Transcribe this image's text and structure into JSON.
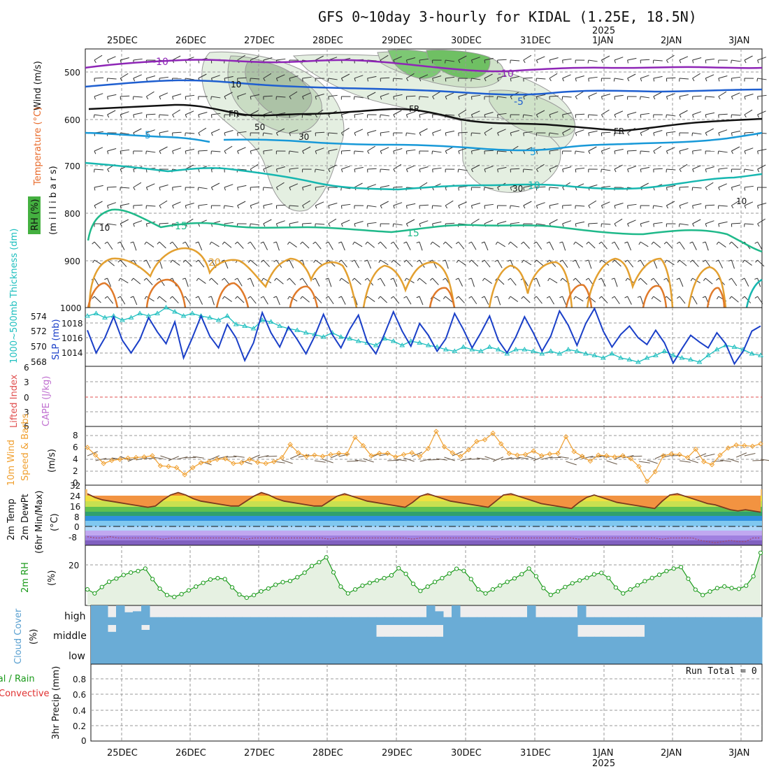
{
  "title": "GFS 0~10day 3-hourly for KIDAL (1.25E, 18.5N)",
  "dates": [
    "25DEC",
    "26DEC",
    "27DEC",
    "28DEC",
    "29DEC",
    "30DEC",
    "31DEC",
    "1JAN",
    "2JAN",
    "3JAN"
  ],
  "year_label": "2025",
  "colors": {
    "temp_m10": "#8e26b6",
    "temp_m5": "#1f5fd0",
    "temp_5": "#1899d8",
    "temp_10": "#17b7b0",
    "temp_15": "#1fb98a",
    "temp_20": "#e3a030",
    "temp_25": "#e07a2a",
    "freezing": "#111111",
    "slp": "#1a3fc8",
    "thickness": "#1ebfbf",
    "wind_speed": "#f0a030",
    "temp_fill_warm": "#f08020",
    "dewpoint": "#a04a70",
    "rh": "#1a9a1a",
    "cloud": "#6aacd6",
    "cloud_gap": "#e8e8e8"
  },
  "panels": {
    "upper_air": {
      "y_ticks": [
        "500",
        "600",
        "700",
        "800",
        "900",
        "1000"
      ],
      "label_wind": "Wind (m/s)",
      "label_temp": "Temperature (°C)",
      "label_rh": "RH (%)",
      "label_units": "(m i l l i b a r s)",
      "contour_labels": [
        "-10",
        "-10",
        "-5",
        "FR",
        "FR",
        "FR",
        "5",
        "5",
        "10",
        "15",
        "15",
        "20",
        "10",
        "10",
        "30",
        "30",
        "50",
        "10"
      ]
    },
    "slp_thickness": {
      "label_thickness": "1000~500mb Thickness (dm)",
      "label_slp": "SLP (mb)",
      "left_ticks": [
        "574",
        "572",
        "570",
        "568"
      ],
      "right_ticks": [
        "1018",
        "1016",
        "1014"
      ]
    },
    "stability": {
      "label_li": "Lifted Index",
      "label_cape": "CAPE (J/kg)",
      "ticks": [
        "6",
        "3",
        "0",
        "3",
        "6"
      ]
    },
    "wind10m": {
      "label_1": "10m Wind",
      "label_2": "Speed & Barbs",
      "units": "(m/s)",
      "ticks": [
        "8",
        "6",
        "4",
        "2",
        "0"
      ]
    },
    "temp2m": {
      "label_1": "2m Temp",
      "label_2": "2m DewPt",
      "label_3": "(6hr Min/Max)",
      "units": "(°C)",
      "ticks": [
        "32",
        "24",
        "16",
        "8",
        "0",
        "-8"
      ]
    },
    "rh2m": {
      "label": "2m RH",
      "units": "(%)",
      "ticks": [
        "20"
      ]
    },
    "cloud": {
      "label": "Cloud Cover",
      "units": "(%)",
      "levels": [
        "high",
        "middle",
        "low"
      ]
    },
    "precip": {
      "label_total": "Total / Rain",
      "label_conv": "Convective",
      "label_axis": "3hr Precip (mm)",
      "ticks": [
        "0.8",
        "0.6",
        "0.4",
        "0.2",
        "0"
      ],
      "run_total": "Run Total = 0"
    }
  },
  "chart_data": [
    {
      "type": "line",
      "title": "1000~500mb Thickness (dm) / SLP (mb)",
      "series": [
        {
          "name": "SLP (mb)",
          "values": [
            1016.8,
            1014.1,
            1015.9,
            1018.4,
            1015.6,
            1014.1,
            1015.7,
            1018.3,
            1016.6,
            1015.2,
            1017.8,
            1013.5,
            1015.9,
            1018.5,
            1016.1,
            1014.7,
            1017.5,
            1015.9,
            1013.2,
            1015.3,
            1018.9,
            1016.5,
            1014.8,
            1017.2,
            1015.7,
            1014.0,
            1016.1,
            1018.7,
            1016.3,
            1014.7,
            1016.9,
            1018.6,
            1015.4,
            1014.0,
            1016.4,
            1019.0,
            1016.7,
            1014.9,
            1017.6,
            1016.2,
            1014.3,
            1015.8,
            1018.8,
            1016.9,
            1014.7,
            1016.5,
            1018.5,
            1015.6,
            1014.1,
            1016.0,
            1018.4,
            1016.5,
            1014.3,
            1016.1,
            1019.1,
            1017.4,
            1015.0,
            1017.6,
            1019.4,
            1016.7,
            1014.8,
            1016.3,
            1017.3,
            1015.9,
            1015.1,
            1016.8,
            1015.3,
            1012.9,
            1014.6,
            1016.2,
            1015.4,
            1014.7,
            1016.5,
            1015.2,
            1012.8,
            1014.3,
            1016.7,
            1017.3
          ]
        },
        {
          "name": "Thickness (dm)",
          "values": [
            573.6,
            573.9,
            573.4,
            573.6,
            573.1,
            573.4,
            573.9,
            573.6,
            573.9,
            574.6,
            574.1,
            573.6,
            573.9,
            573.6,
            573.4,
            573.1,
            573.6,
            572.6,
            572.4,
            572.1,
            573.1,
            572.9,
            572.4,
            572.1,
            571.9,
            571.6,
            571.4,
            571.1,
            571.6,
            571.1,
            570.9,
            570.6,
            570.4,
            570.1,
            570.9,
            570.6,
            570.1,
            570.6,
            570.4,
            570.1,
            569.9,
            569.6,
            569.4,
            569.9,
            569.6,
            569.4,
            569.9,
            569.6,
            569.1,
            569.6,
            569.6,
            569.4,
            569.1,
            569.4,
            569.1,
            569.6,
            569.4,
            569.1,
            568.9,
            568.6,
            569.1,
            568.6,
            568.4,
            568.1,
            568.6,
            568.9,
            569.4,
            568.9,
            568.6,
            568.4,
            568.1,
            568.9,
            569.6,
            570.1,
            569.9,
            569.6,
            569.1,
            568.9
          ]
        }
      ],
      "ylabel": "SLP (mb)",
      "ylim": [
        1012.5,
        1019.5
      ],
      "y2lim": [
        567.6,
        574.6
      ]
    },
    {
      "type": "line",
      "title": "10m Wind Speed (m/s)",
      "series": [
        {
          "name": "Speed",
          "values": [
            6.0,
            4.7,
            3.3,
            3.8,
            4.0,
            4.2,
            4.3,
            4.4,
            4.6,
            2.9,
            2.8,
            2.6,
            1.4,
            2.6,
            3.4,
            3.6,
            4.0,
            4.1,
            3.3,
            3.4,
            4.0,
            3.5,
            3.3,
            3.6,
            4.3,
            6.5,
            5.1,
            4.5,
            4.7,
            4.5,
            4.8,
            5.0,
            4.9,
            7.7,
            6.3,
            4.6,
            5.0,
            5.0,
            4.4,
            4.8,
            5.1,
            4.5,
            5.8,
            8.7,
            6.1,
            5.1,
            4.5,
            5.6,
            7.0,
            7.3,
            8.4,
            6.6,
            5.0,
            4.7,
            4.8,
            5.4,
            4.6,
            4.9,
            5.0,
            7.8,
            5.3,
            4.5,
            3.7,
            4.7,
            4.6,
            4.4,
            4.6,
            4.1,
            2.8,
            0.3,
            1.9,
            4.6,
            4.9,
            4.8,
            4.3,
            5.7,
            3.6,
            3.1,
            4.7,
            5.9,
            6.4,
            6.3,
            6.2,
            6.6
          ]
        }
      ],
      "ylabel": "(m/s)",
      "ylim": [
        0,
        10
      ]
    },
    {
      "type": "area",
      "title": "2m Temp (°C)",
      "series": [
        {
          "name": "2m Temp",
          "values": [
            26,
            23,
            21,
            20,
            19,
            18,
            17,
            16,
            15,
            16,
            21,
            25,
            27,
            25,
            22,
            20,
            19,
            18,
            17,
            16,
            16,
            20,
            24,
            27,
            25,
            22,
            20,
            19,
            18,
            17,
            16,
            16,
            20,
            24,
            26,
            24,
            22,
            20,
            19,
            18,
            17,
            16,
            15,
            19,
            24,
            26,
            24,
            22,
            20,
            19,
            18,
            17,
            16,
            15,
            20,
            25,
            26,
            24,
            22,
            20,
            18,
            17,
            16,
            15,
            14,
            19,
            23,
            25,
            23,
            21,
            19,
            18,
            17,
            16,
            15,
            14,
            20,
            25,
            26,
            24,
            22,
            20,
            18,
            17,
            15,
            13,
            12,
            13,
            12,
            11
          ]
        },
        {
          "name": "2m DewPt",
          "values": [
            -9,
            -10,
            -10,
            -9,
            -10,
            -10,
            -10,
            -10,
            -10,
            -10,
            -11,
            -10,
            -10,
            -10,
            -10,
            -10,
            -10,
            -10,
            -10,
            -10,
            -10,
            -11,
            -10,
            -10,
            -10,
            -10,
            -10,
            -10,
            -10,
            -10,
            -10,
            -10,
            -11,
            -10,
            -10,
            -10,
            -10,
            -10,
            -10,
            -10,
            -10,
            -10,
            -10,
            -11,
            -10,
            -10,
            -10,
            -10,
            -10,
            -10,
            -10,
            -10,
            -10,
            -10,
            -11,
            -10,
            -10,
            -10,
            -10,
            -10,
            -10,
            -10,
            -10,
            -10,
            -10,
            -11,
            -10,
            -10,
            -10,
            -10,
            -10,
            -10,
            -10,
            -10,
            -10,
            -10,
            -11,
            -10,
            -10,
            -10,
            -10,
            -12,
            -13,
            -14,
            -13,
            -12,
            -13,
            -13,
            -10,
            -10
          ]
        }
      ],
      "ylabel": "(°C)",
      "ylim": [
        -16,
        33
      ]
    },
    {
      "type": "line",
      "title": "2m RH (%)",
      "series": [
        {
          "name": "2m RH",
          "values": [
            8.5,
            6.4,
            9.8,
            12.6,
            14.3,
            16.2,
            17.5,
            18.3,
            19.6,
            14.0,
            8.9,
            5.5,
            4.5,
            6.0,
            8.0,
            10.0,
            12.0,
            13.8,
            14.5,
            14.0,
            9.6,
            5.8,
            4.1,
            5.5,
            7.5,
            9.0,
            11.0,
            12.4,
            13.0,
            15.0,
            17.4,
            21.0,
            23.0,
            25.6,
            17.6,
            10.0,
            6.4,
            8.5,
            10.5,
            12.0,
            13.3,
            14.5,
            16.0,
            19.8,
            16.8,
            11.5,
            7.7,
            10.0,
            12.5,
            14.5,
            17.0,
            19.5,
            18.4,
            14.0,
            8.5,
            6.4,
            8.5,
            10.6,
            12.5,
            14.4,
            16.6,
            19.6,
            15.5,
            9.2,
            5.6,
            7.5,
            9.8,
            11.8,
            13.3,
            14.7,
            16.5,
            17.3,
            14.6,
            9.5,
            6.4,
            8.5,
            10.7,
            12.9,
            14.6,
            16.3,
            18.3,
            19.6,
            20.4,
            14.2,
            8.4,
            5.5,
            7.4,
            9.2,
            10.1,
            9.2,
            8.8,
            10.5,
            15.5,
            28.0
          ]
        }
      ],
      "ylabel": "(%)",
      "ylim": [
        0,
        32
      ]
    },
    {
      "type": "area",
      "title": "Cloud Cover (%)",
      "series": [
        {
          "name": "high",
          "values": [
            100,
            100,
            40,
            100,
            65,
            70,
            100,
            40,
            40,
            40,
            40,
            40,
            40,
            40,
            40,
            40,
            40,
            40,
            40,
            40,
            40,
            40,
            40,
            40,
            40,
            40,
            40,
            40,
            40,
            40,
            40,
            40,
            40,
            40,
            40,
            40,
            40,
            40,
            40,
            40,
            100,
            70,
            40,
            100,
            40,
            40,
            40,
            40,
            40,
            40,
            40,
            40,
            100,
            40,
            40,
            40,
            40,
            40,
            100,
            40,
            40,
            40,
            40,
            40,
            40,
            40,
            40,
            40,
            40,
            40,
            40,
            40,
            40,
            40,
            40,
            40,
            40,
            40,
            40,
            40
          ]
        },
        {
          "name": "middle",
          "values": [
            100,
            100,
            65,
            100,
            100,
            100,
            75,
            100,
            100,
            100,
            100,
            100,
            100,
            100,
            100,
            100,
            100,
            100,
            100,
            100,
            100,
            100,
            100,
            100,
            100,
            100,
            100,
            100,
            100,
            100,
            100,
            100,
            100,
            100,
            40,
            40,
            40,
            40,
            40,
            40,
            40,
            40,
            100,
            100,
            100,
            100,
            100,
            100,
            100,
            100,
            100,
            100,
            100,
            100,
            100,
            100,
            100,
            100,
            40,
            40,
            40,
            40,
            40,
            40,
            40,
            40,
            100,
            100,
            100,
            100,
            100,
            100,
            100,
            100,
            100,
            100,
            100,
            100,
            100,
            100
          ]
        },
        {
          "name": "low",
          "values": [
            100,
            100,
            100,
            100,
            100,
            100,
            100,
            100,
            100,
            100,
            100,
            100,
            100,
            100,
            100,
            100,
            100,
            100,
            100,
            100,
            100,
            100,
            100,
            100,
            100,
            100,
            100,
            100,
            100,
            100,
            100,
            100,
            100,
            100,
            100,
            100,
            100,
            100,
            100,
            100,
            100,
            100,
            100,
            100,
            100,
            100,
            100,
            100,
            100,
            100,
            100,
            100,
            100,
            100,
            100,
            100,
            100,
            100,
            100,
            100,
            100,
            100,
            100,
            100,
            100,
            100,
            100,
            100,
            100,
            100,
            100,
            100,
            100,
            100,
            100,
            100,
            100,
            100,
            100,
            100
          ]
        }
      ],
      "ylabel": "(%)",
      "ylim": [
        0,
        100
      ]
    },
    {
      "type": "bar",
      "title": "3hr Precip (mm)",
      "values": [],
      "ylabel": "3hr Precip (mm)",
      "ylim": [
        0,
        0.9
      ]
    }
  ]
}
